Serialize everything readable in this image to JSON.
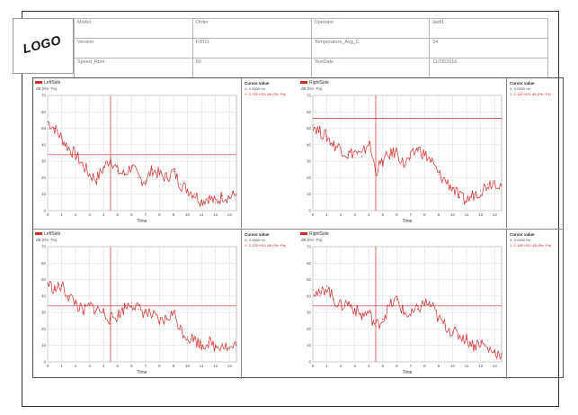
{
  "header": {
    "logo_text": "LOGO",
    "rows": [
      [
        "Model",
        "Order",
        "Operator",
        "ljadl1"
      ],
      [
        "Version",
        "F3011",
        "Temperature_Avg_C",
        "24"
      ],
      [
        "Speed_Rpm",
        "50",
        "TestDate",
        "11/29/2016"
      ]
    ]
  },
  "colors": {
    "trace": "#d12a2a",
    "grid": "#d8d8d8",
    "panel_border": "#888888"
  },
  "panels": [
    {
      "title": "LeftSide",
      "unit": "dB (Re: Pa)",
      "cursor_title": "Cursor value",
      "cursor_x": "X: 0.0000 Hz",
      "cursor_y": "Y: 2.13E+001 dB (Re: Pa)",
      "xlabel": "Time"
    },
    {
      "title": "RightSide",
      "unit": "dB (Re: Pa)",
      "cursor_title": "Cursor value",
      "cursor_x": "X: 0.0000 Hz",
      "cursor_y": "Y: 2.11E+001 dB (Re: Pa)",
      "xlabel": "Time"
    },
    {
      "title": "LeftSide",
      "unit": "dB (Re: Pa)",
      "cursor_title": "Cursor value",
      "cursor_x": "X: 0.0000 Hz",
      "cursor_y": "Y: 2.12E+001 dB (Re: Pa)",
      "xlabel": "Time"
    },
    {
      "title": "RightSide",
      "unit": "dB (Re: Pa)",
      "cursor_title": "Cursor value",
      "cursor_x": "X: 0.0000 Hz",
      "cursor_y": "Y: 2.10E+001 dB (Re: Pa)",
      "xlabel": "Time"
    }
  ],
  "chart_data": [
    {
      "type": "line",
      "xlabel": "Time",
      "ylabel": "dB (Re: Pa)",
      "xlim": [
        0,
        13.5
      ],
      "ylim": [
        0,
        70
      ],
      "cursor": {
        "x": 4.5,
        "y": 34
      },
      "xticks": [
        "0",
        "1",
        "2",
        "3",
        "4",
        "5",
        "6",
        "7",
        "8",
        "9",
        "10",
        "11",
        "12",
        "13"
      ],
      "yticks": [
        "0",
        "10",
        "20",
        "30",
        "40",
        "50",
        "60",
        "70"
      ],
      "series": [
        {
          "x": [
            0,
            0.5,
            1,
            1.5,
            2,
            2.5,
            3,
            3.5,
            4,
            4.5,
            5,
            5.5,
            6,
            6.5,
            7,
            7.5,
            8,
            8.5,
            9,
            9.5,
            10,
            10.5,
            11,
            11.5,
            12,
            12.5,
            13,
            13.5
          ],
          "values": [
            54,
            50,
            44,
            38,
            34,
            28,
            22,
            19,
            26,
            32,
            24,
            22,
            27,
            20,
            18,
            25,
            22,
            20,
            24,
            16,
            13,
            10,
            6,
            8,
            5,
            9,
            8,
            10
          ]
        }
      ]
    },
    {
      "type": "line",
      "xlabel": "Time",
      "ylabel": "dB (Re: Pa)",
      "xlim": [
        0,
        13.5
      ],
      "ylim": [
        0,
        70
      ],
      "cursor": {
        "x": 4.5,
        "y": 56
      },
      "xticks": [
        "0",
        "1",
        "2",
        "3",
        "4",
        "5",
        "6",
        "7",
        "8",
        "9",
        "10",
        "11",
        "12",
        "13"
      ],
      "yticks": [
        "0",
        "10",
        "20",
        "30",
        "40",
        "50",
        "60",
        "70"
      ],
      "series": [
        {
          "x": [
            0,
            0.5,
            1,
            1.5,
            2,
            2.5,
            3,
            3.5,
            4,
            4.5,
            5,
            5.5,
            6,
            6.5,
            7,
            7.5,
            8,
            8.5,
            9,
            9.5,
            10,
            10.5,
            11,
            11.5,
            12,
            12.5,
            13,
            13.5
          ],
          "values": [
            52,
            48,
            45,
            40,
            38,
            34,
            36,
            33,
            42,
            24,
            30,
            34,
            36,
            28,
            32,
            38,
            34,
            30,
            22,
            18,
            14,
            8,
            6,
            10,
            12,
            16,
            18,
            15
          ]
        }
      ]
    },
    {
      "type": "line",
      "xlabel": "Time",
      "ylabel": "dB (Re: Pa)",
      "xlim": [
        0,
        13.5
      ],
      "ylim": [
        0,
        70
      ],
      "cursor": {
        "x": 4.5,
        "y": 34
      },
      "xticks": [
        "0",
        "1",
        "2",
        "3",
        "4",
        "5",
        "6",
        "7",
        "8",
        "9",
        "10",
        "11",
        "12",
        "13"
      ],
      "yticks": [
        "0",
        "10",
        "20",
        "30",
        "40",
        "50",
        "60",
        "70"
      ],
      "series": [
        {
          "x": [
            0,
            0.5,
            1,
            1.5,
            2,
            2.5,
            3,
            3.5,
            4,
            4.5,
            5,
            5.5,
            6,
            6.5,
            7,
            7.5,
            8,
            8.5,
            9,
            9.5,
            10,
            10.5,
            11,
            11.5,
            12,
            12.5,
            13,
            13.5
          ],
          "values": [
            48,
            44,
            46,
            40,
            36,
            30,
            34,
            32,
            30,
            26,
            28,
            33,
            36,
            32,
            30,
            28,
            24,
            26,
            30,
            20,
            15,
            14,
            10,
            12,
            9,
            11,
            8,
            10
          ]
        }
      ]
    },
    {
      "type": "line",
      "xlabel": "Time",
      "ylabel": "dB (Re: Pa)",
      "xlim": [
        0,
        13.5
      ],
      "ylim": [
        0,
        70
      ],
      "cursor": {
        "x": 4.5,
        "y": 34
      },
      "xticks": [
        "0",
        "1",
        "2",
        "3",
        "4",
        "5",
        "6",
        "7",
        "8",
        "9",
        "10",
        "11",
        "12",
        "13"
      ],
      "yticks": [
        "0",
        "10",
        "20",
        "30",
        "40",
        "50",
        "60",
        "70"
      ],
      "series": [
        {
          "x": [
            0,
            0.5,
            1,
            1.5,
            2,
            2.5,
            3,
            3.5,
            4,
            4.5,
            5,
            5.5,
            6,
            6.5,
            7,
            7.5,
            8,
            8.5,
            9,
            9.5,
            10,
            10.5,
            11,
            11.5,
            12,
            12.5,
            13,
            13.5
          ],
          "values": [
            44,
            40,
            46,
            38,
            34,
            36,
            32,
            28,
            30,
            22,
            26,
            34,
            38,
            30,
            28,
            32,
            36,
            34,
            26,
            22,
            18,
            16,
            14,
            10,
            12,
            8,
            6,
            5
          ]
        }
      ]
    }
  ]
}
